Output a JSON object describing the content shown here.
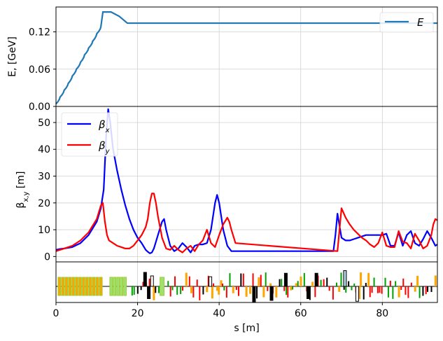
{
  "chart_data": [
    {
      "type": "line",
      "panel": "energy",
      "ylabel": "E, [GeV]",
      "xlim": [
        0,
        93.5
      ],
      "ylim": [
        0,
        0.16
      ],
      "yticks": [
        "0.00",
        "0.06",
        "0.12"
      ],
      "ytick_values": [
        0,
        0.06,
        0.12
      ],
      "grid": true,
      "legend_position": "top-right",
      "series": [
        {
          "name": "E",
          "color": "#1f77b4",
          "x": [
            0,
            1,
            2,
            3,
            4,
            5,
            6,
            7,
            8,
            9,
            10,
            11,
            11.5,
            13.5,
            15.5,
            17.5,
            20,
            30,
            40,
            50,
            60,
            70,
            80,
            93.5
          ],
          "y": [
            0.004,
            0.015,
            0.026,
            0.037,
            0.049,
            0.06,
            0.071,
            0.083,
            0.094,
            0.105,
            0.117,
            0.128,
            0.152,
            0.152,
            0.145,
            0.134,
            0.134,
            0.134,
            0.134,
            0.134,
            0.134,
            0.134,
            0.134,
            0.134
          ]
        }
      ]
    },
    {
      "type": "line",
      "panel": "beta",
      "ylabel": "β_{x,y} [m]",
      "ylabel_main": "β",
      "ylabel_sub": "x,y",
      "ylabel_unit": " [m]",
      "xlabel": "s [m]",
      "xlim": [
        0,
        93.5
      ],
      "ylim": [
        -2,
        56
      ],
      "yticks": [
        "0",
        "10",
        "20",
        "30",
        "40",
        "50"
      ],
      "ytick_values": [
        0,
        10,
        20,
        30,
        40,
        50
      ],
      "xticks": [
        "0",
        "20",
        "40",
        "60",
        "80"
      ],
      "xtick_values": [
        0,
        20,
        40,
        60,
        80
      ],
      "grid": true,
      "legend_position": "top-left",
      "series": [
        {
          "name": "β_x",
          "label_main": "β",
          "label_sub": "x",
          "color": "#0000ff",
          "x": [
            0,
            1,
            2,
            4,
            6,
            8,
            10,
            11,
            11.7,
            12.3,
            12.8,
            13.3,
            14,
            15,
            16,
            17,
            18,
            19,
            20,
            21,
            22,
            22.5,
            23,
            23.5,
            24,
            25,
            26,
            26.5,
            27,
            28,
            29,
            30,
            31,
            32,
            33,
            34,
            35,
            36,
            37,
            38,
            39,
            39.5,
            40,
            41,
            42,
            43,
            44,
            45,
            46,
            68,
            68.5,
            69,
            70,
            71,
            72,
            73,
            74,
            76,
            78,
            80,
            81,
            82,
            83,
            84,
            85,
            86,
            87,
            88,
            89,
            90,
            91,
            92,
            93,
            93.5
          ],
          "y": [
            2.5,
            2.8,
            3,
            3.5,
            5,
            8,
            13,
            18,
            25,
            45,
            55,
            50,
            40,
            32,
            25,
            19,
            14,
            10,
            7,
            5,
            2.5,
            1.8,
            1.2,
            1.5,
            3,
            8,
            13,
            14,
            10,
            4,
            2,
            3,
            5,
            3.5,
            1.5,
            4,
            4.5,
            4.5,
            5,
            10,
            20,
            23,
            20,
            10,
            4,
            2,
            2,
            2.5,
            3,
            2,
            8,
            16,
            7,
            6,
            6,
            6.5,
            7,
            8,
            8,
            8,
            8.5,
            4,
            4,
            9,
            4,
            8,
            9.5,
            5,
            4,
            6.5,
            9.5,
            7,
            4,
            4.5
          ],
          "oscillation_region": [
            44.5,
            67
          ],
          "oscillation_min": 1.3,
          "oscillation_max": 3.8,
          "oscillation_period": 1.5
        },
        {
          "name": "β_y",
          "label_main": "β",
          "label_sub": "y",
          "color": "#ff0000",
          "x": [
            0,
            1,
            2,
            4,
            6,
            8,
            10,
            11,
            11.5,
            12,
            12.5,
            13,
            14,
            15,
            16,
            17,
            18,
            19,
            20,
            21,
            22,
            22.5,
            23,
            23.5,
            24,
            24.5,
            25,
            26,
            27,
            28,
            29,
            30,
            31,
            32,
            33,
            34,
            35,
            36,
            37,
            38,
            39,
            40,
            41,
            42,
            42.5,
            43,
            44,
            45,
            46,
            47,
            48,
            69,
            69.5,
            70,
            71,
            72,
            73,
            74,
            75,
            76,
            77,
            78,
            79,
            80,
            81,
            82,
            83,
            84,
            85,
            86,
            87,
            88,
            89,
            90,
            91,
            92,
            92.5,
            93,
            93.5
          ],
          "y": [
            2,
            2.5,
            3,
            4,
            6,
            9,
            14,
            19,
            20,
            13,
            8,
            6,
            5,
            4,
            3.5,
            3,
            3,
            4,
            6,
            8,
            11,
            14,
            20,
            23.5,
            23.5,
            20,
            15,
            7,
            3,
            2.5,
            4,
            2.5,
            1.5,
            3,
            4,
            2,
            4.5,
            6,
            10,
            5,
            3.5,
            8,
            12,
            14.5,
            13,
            10,
            5,
            3.5,
            3,
            2.5,
            2,
            2,
            10,
            18,
            14.5,
            12,
            10,
            8.5,
            7,
            6,
            4.5,
            3.5,
            5,
            9,
            4,
            3.5,
            3.5,
            9.5,
            5.5,
            5,
            3,
            8.5,
            6,
            3,
            4,
            8,
            12,
            14,
            13.5
          ],
          "oscillation_region": [
            44.5,
            67.5
          ],
          "oscillation_min": 1.3,
          "oscillation_max": 3.8,
          "oscillation_period": 1.5
        }
      ]
    },
    {
      "type": "lattice",
      "panel": "lattice",
      "xlim": [
        0,
        93.5
      ],
      "colors": {
        "cavity_fill": "#ffa500",
        "cavity_edge": "#9acd32",
        "light_block": "#a0e070",
        "quad": "#ff0000",
        "bend": "#ffa500",
        "sext": "#00a000",
        "corrector": "#000000",
        "monitor": "#add8e6"
      },
      "cavity_blocks": [
        [
          0.5,
          11
        ],
        [
          13.2,
          17.6
        ]
      ],
      "light_blocks": [
        [
          13.2,
          17.6
        ],
        [
          25.5,
          26.5
        ]
      ],
      "tall_elements": [
        {
          "s": 21.5,
          "h": 0.8,
          "color": "#000000"
        },
        {
          "s": 22.4,
          "h": -0.7,
          "color": "#000000"
        },
        {
          "s": 23.2,
          "h": 0.6,
          "color": "#ffffff"
        },
        {
          "s": 37.5,
          "h": 0.55,
          "color": "#ffffff"
        },
        {
          "s": 48.2,
          "h": -0.9,
          "color": "#000000"
        },
        {
          "s": 52.5,
          "h": -0.8,
          "color": "#000000"
        },
        {
          "s": 56,
          "h": 0.75,
          "color": "#000000"
        },
        {
          "s": 61.5,
          "h": -0.7,
          "color": "#000000"
        },
        {
          "s": 63.5,
          "h": 0.75,
          "color": "#000000"
        },
        {
          "s": 70.5,
          "h": 0.9,
          "color": "#add8e6"
        },
        {
          "s": 73.5,
          "h": -0.85,
          "color": "#ffffff"
        }
      ]
    }
  ]
}
